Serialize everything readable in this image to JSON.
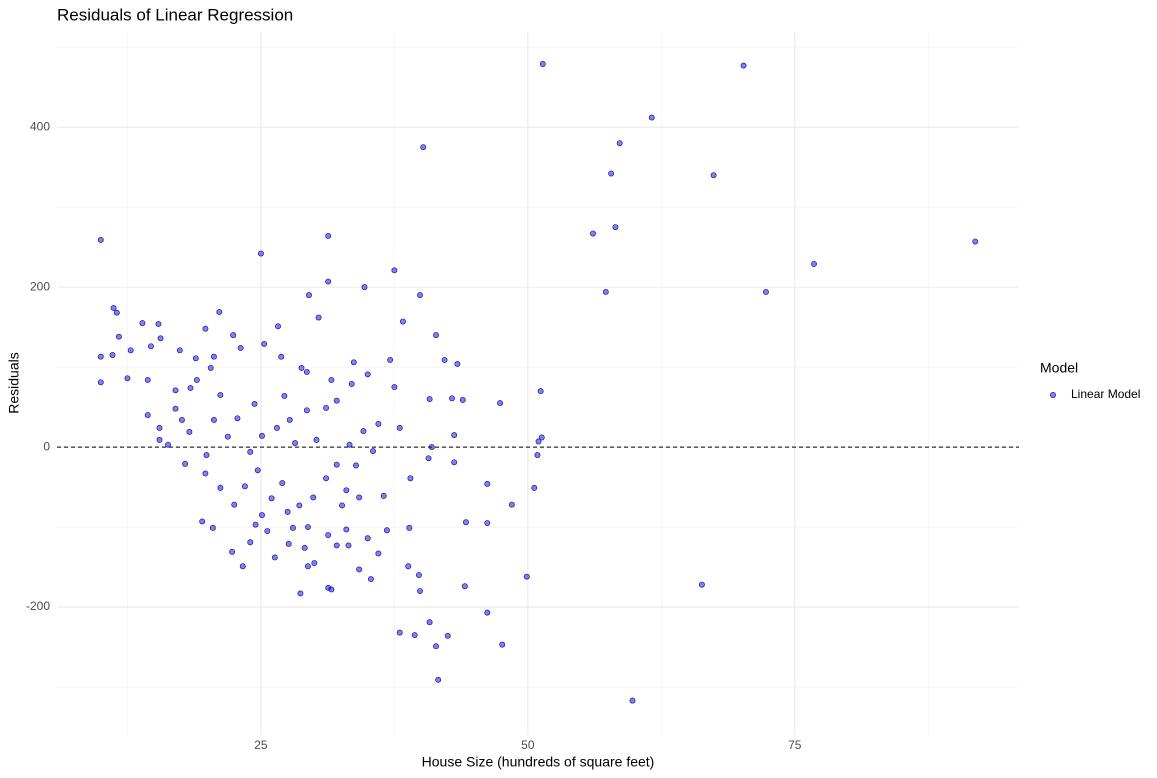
{
  "chart_data": {
    "type": "scatter",
    "title": "Residuals of Linear Regression",
    "x_label": "House Size (hundreds of square feet)",
    "y_label": "Residuals",
    "legend_title": "Model",
    "legend_position": "right",
    "xlim": [
      5.9,
      96
    ],
    "ylim": [
      -360,
      519
    ],
    "xticks": [
      25,
      50,
      75
    ],
    "yticks": [
      -200,
      0,
      200,
      400
    ],
    "x_minor_ticks": [
      12.5,
      37.5,
      62.5,
      87.5
    ],
    "y_minor_ticks": [
      -300,
      -100,
      100,
      300,
      500
    ],
    "grid": true,
    "hline": 0,
    "series": [
      {
        "name": "Linear Model",
        "color": "#0000ff",
        "x": [
          10.0,
          51.4,
          70.2,
          61.6,
          58.6,
          57.8,
          67.4,
          58.2,
          56.1,
          91.9,
          76.8,
          72.3,
          57.3,
          40.2,
          31.3,
          25.0,
          31.3,
          37.5,
          39.9,
          34.7,
          29.5,
          30.4,
          38.3,
          41.4,
          51.2,
          51.3,
          51.0,
          50.9,
          50.6,
          49.9,
          48.5,
          46.2,
          46.2,
          46.2,
          47.6,
          44.2,
          44.1,
          42.5,
          41.4,
          41.6,
          59.8,
          66.3,
          40.8,
          39.4,
          38.0,
          39.9,
          39.8,
          43.1,
          43.1,
          43.4,
          42.2,
          42.9,
          43.9,
          47.4,
          40.8,
          40.7,
          41.0,
          39.0,
          38.9,
          38.8,
          37.5,
          37.1,
          38.0,
          11.1,
          10.0,
          10.0,
          11.2,
          11.5,
          11.7,
          12.8,
          12.5,
          13.9,
          15.4,
          21.1,
          19.8,
          22.4,
          23.1,
          25.3,
          26.6,
          26.9,
          28.8,
          29.3,
          32.1,
          33.7,
          35.0,
          33.5,
          34.6,
          35.5,
          34.2,
          35.0,
          35.3,
          34.2,
          33.0,
          31.6,
          31.3,
          30.0,
          28.7,
          29.4,
          27.6,
          26.3,
          24.0,
          23.3,
          22.3,
          20.5,
          19.5,
          19.8,
          17.9,
          16.3,
          15.5,
          14.4,
          17.0,
          18.4,
          20.3,
          19.0,
          21.2,
          22.8,
          21.9,
          24.0,
          25.1,
          26.5,
          27.7,
          28.2,
          24.7,
          23.5,
          26.0,
          27.0,
          28.6,
          29.9,
          31.1,
          32.1,
          33.0,
          29.4,
          27.5,
          25.1,
          24.5,
          22.5,
          21.2,
          19.9,
          18.3,
          20.6,
          17.6,
          15.5,
          17.0,
          14.4,
          14.7,
          15.6,
          17.4,
          18.9,
          20.6,
          30.2,
          31.1,
          29.3,
          27.2,
          24.4,
          31.6,
          33.3,
          33.9,
          32.6,
          31.3,
          29.1,
          28.0,
          25.6,
          36.0,
          36.5,
          36.8,
          36.0,
          33.2,
          32.1
        ],
        "values": [
          259,
          479,
          477,
          412,
          380,
          342,
          340,
          275,
          267,
          257,
          229,
          194,
          194,
          375,
          264,
          242,
          207,
          221,
          190,
          200,
          190,
          162,
          157,
          140,
          70,
          12,
          7,
          -10,
          -51,
          -162,
          -72,
          -46,
          -95,
          -207,
          -247,
          -94,
          -174,
          -236,
          -249,
          -291,
          -317,
          -172,
          -219,
          -235,
          -232,
          -180,
          -160,
          -19,
          15,
          104,
          109,
          61,
          59,
          55,
          60,
          -14,
          0,
          -39,
          -101,
          -149,
          75,
          109,
          24,
          115,
          113,
          81,
          174,
          168,
          138,
          121,
          86,
          155,
          154,
          169,
          148,
          140,
          124,
          129,
          151,
          113,
          99,
          94,
          58,
          106,
          91,
          79,
          20,
          -5,
          -63,
          -114,
          -165,
          -153,
          -103,
          -178,
          -176,
          -145,
          -183,
          -149,
          -121,
          -138,
          -119,
          -149,
          -131,
          -101,
          -93,
          -33,
          -21,
          3,
          24,
          40,
          48,
          74,
          99,
          84,
          65,
          36,
          13,
          -6,
          14,
          24,
          34,
          5,
          -29,
          -49,
          -64,
          -45,
          -73,
          -63,
          -39,
          -22,
          -54,
          -100,
          -81,
          -85,
          -97,
          -72,
          -51,
          -10,
          19,
          34,
          34,
          9,
          71,
          84,
          126,
          136,
          121,
          111,
          113,
          9,
          49,
          46,
          64,
          54,
          84,
          3,
          -23,
          -73,
          -110,
          -126,
          -101,
          -105,
          29,
          -61,
          -104,
          -133,
          -123,
          -123
        ]
      }
    ]
  }
}
